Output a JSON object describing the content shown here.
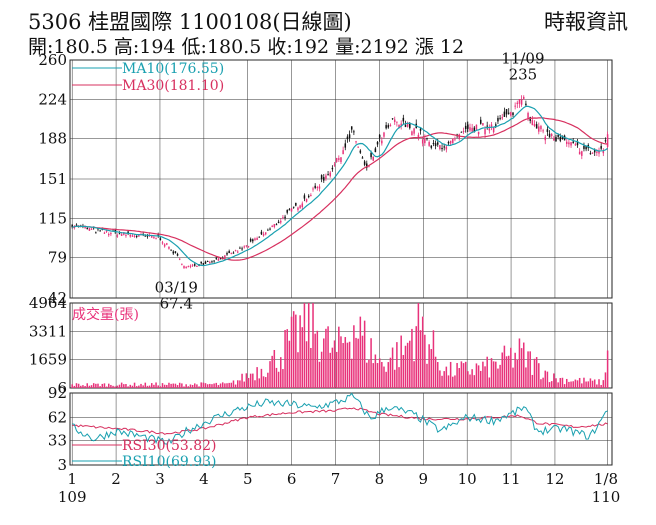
{
  "header": {
    "stock_code": "5306",
    "stock_name": "桂盟國際",
    "date_code": "1100108",
    "chart_kind": "(日線圖)",
    "source": "時報資訊",
    "quote": "開:180.5 高:194 低:180.5 收:192 量:2192 漲 12"
  },
  "colors": {
    "up_candle": "#e8327a",
    "down_candle": "#111111",
    "ma10": "#1aa0b0",
    "ma30": "#d7305f",
    "volume": "#e8327a",
    "rsi10": "#1aa0b0",
    "rsi30": "#d7305f",
    "grid": "#333333"
  },
  "chart_data": [
    {
      "type": "candlestick",
      "title": "",
      "y_ticks": [
        42,
        79,
        115,
        151,
        188,
        224,
        260
      ],
      "ylim": [
        42,
        260
      ],
      "grid": true,
      "legend_position": "top-left",
      "legend": [
        {
          "name": "MA10",
          "value_label": "MA10(176.55)",
          "color": "#1aa0b0"
        },
        {
          "name": "MA30",
          "value_label": "MA30(181.10)",
          "color": "#d7305f"
        }
      ],
      "annotations": [
        {
          "date_label": "03/19",
          "value_label": "67.4",
          "kind": "low",
          "x_month": 3.6,
          "y": 67.4
        },
        {
          "date_label": "11/09",
          "value_label": "235",
          "kind": "high",
          "x_month": 11.27,
          "y": 235
        }
      ],
      "price_keypoints": [
        {
          "x_month": 1.0,
          "y": 109
        },
        {
          "x_month": 1.6,
          "y": 103
        },
        {
          "x_month": 2.3,
          "y": 100
        },
        {
          "x_month": 3.0,
          "y": 97
        },
        {
          "x_month": 3.35,
          "y": 82
        },
        {
          "x_month": 3.6,
          "y": 70
        },
        {
          "x_month": 4.0,
          "y": 74
        },
        {
          "x_month": 4.5,
          "y": 80
        },
        {
          "x_month": 5.0,
          "y": 90
        },
        {
          "x_month": 5.5,
          "y": 105
        },
        {
          "x_month": 6.0,
          "y": 122
        },
        {
          "x_month": 6.5,
          "y": 140
        },
        {
          "x_month": 7.0,
          "y": 165
        },
        {
          "x_month": 7.4,
          "y": 195
        },
        {
          "x_month": 7.7,
          "y": 158
        },
        {
          "x_month": 8.0,
          "y": 185
        },
        {
          "x_month": 8.3,
          "y": 203
        },
        {
          "x_month": 8.8,
          "y": 198
        },
        {
          "x_month": 9.2,
          "y": 180
        },
        {
          "x_month": 9.6,
          "y": 183
        },
        {
          "x_month": 10.0,
          "y": 195
        },
        {
          "x_month": 10.5,
          "y": 200
        },
        {
          "x_month": 11.0,
          "y": 210
        },
        {
          "x_month": 11.27,
          "y": 230
        },
        {
          "x_month": 11.5,
          "y": 200
        },
        {
          "x_month": 12.0,
          "y": 188
        },
        {
          "x_month": 12.5,
          "y": 180
        },
        {
          "x_month": 12.9,
          "y": 175
        },
        {
          "x_month": 13.1,
          "y": 178
        },
        {
          "x_month": 13.2,
          "y": 192
        }
      ]
    },
    {
      "type": "bar",
      "title": "成交量(張)",
      "y_ticks": [
        6,
        1659,
        3311,
        4964
      ],
      "ylim": [
        6,
        4964
      ],
      "grid": true,
      "volume_keypoints": [
        {
          "x_month": 1.0,
          "y": 250
        },
        {
          "x_month": 4.6,
          "y": 280
        },
        {
          "x_month": 5.0,
          "y": 900
        },
        {
          "x_month": 5.6,
          "y": 2000
        },
        {
          "x_month": 6.4,
          "y": 4964
        },
        {
          "x_month": 7.0,
          "y": 2500
        },
        {
          "x_month": 7.4,
          "y": 4700
        },
        {
          "x_month": 8.0,
          "y": 1800
        },
        {
          "x_month": 8.6,
          "y": 2800
        },
        {
          "x_month": 8.85,
          "y": 4964
        },
        {
          "x_month": 9.5,
          "y": 1200
        },
        {
          "x_month": 10.5,
          "y": 1500
        },
        {
          "x_month": 11.2,
          "y": 2500
        },
        {
          "x_month": 12.0,
          "y": 700
        },
        {
          "x_month": 13.1,
          "y": 400
        },
        {
          "x_month": 13.2,
          "y": 2192
        }
      ]
    },
    {
      "type": "line",
      "title": "",
      "y_ticks": [
        3,
        33,
        62,
        92
      ],
      "ylim": [
        3,
        92
      ],
      "grid": true,
      "legend_position": "bottom-left",
      "legend": [
        {
          "name": "RSI30",
          "value_label": "RSI30(53.82)",
          "color": "#d7305f"
        },
        {
          "name": "RSI10",
          "value_label": "RSI10(69.93)",
          "color": "#1aa0b0"
        }
      ],
      "rsi10_keypoints": [
        {
          "x_month": 1.0,
          "y": 50
        },
        {
          "x_month": 1.5,
          "y": 35
        },
        {
          "x_month": 2.0,
          "y": 45
        },
        {
          "x_month": 2.6,
          "y": 38
        },
        {
          "x_month": 3.2,
          "y": 30
        },
        {
          "x_month": 3.6,
          "y": 45
        },
        {
          "x_month": 4.2,
          "y": 60
        },
        {
          "x_month": 4.8,
          "y": 72
        },
        {
          "x_month": 5.4,
          "y": 80
        },
        {
          "x_month": 6.0,
          "y": 78
        },
        {
          "x_month": 6.5,
          "y": 74
        },
        {
          "x_month": 7.0,
          "y": 80
        },
        {
          "x_month": 7.4,
          "y": 88
        },
        {
          "x_month": 7.8,
          "y": 60
        },
        {
          "x_month": 8.2,
          "y": 75
        },
        {
          "x_month": 8.8,
          "y": 65
        },
        {
          "x_month": 9.4,
          "y": 45
        },
        {
          "x_month": 10.0,
          "y": 62
        },
        {
          "x_month": 10.6,
          "y": 58
        },
        {
          "x_month": 11.1,
          "y": 68
        },
        {
          "x_month": 11.3,
          "y": 75
        },
        {
          "x_month": 11.6,
          "y": 45
        },
        {
          "x_month": 12.2,
          "y": 48
        },
        {
          "x_month": 12.8,
          "y": 38
        },
        {
          "x_month": 13.2,
          "y": 69.93
        }
      ],
      "rsi30_keypoints": [
        {
          "x_month": 1.0,
          "y": 52
        },
        {
          "x_month": 2.0,
          "y": 48
        },
        {
          "x_month": 3.2,
          "y": 42
        },
        {
          "x_month": 4.0,
          "y": 48
        },
        {
          "x_month": 5.0,
          "y": 62
        },
        {
          "x_month": 6.0,
          "y": 68
        },
        {
          "x_month": 7.0,
          "y": 70
        },
        {
          "x_month": 7.4,
          "y": 74
        },
        {
          "x_month": 8.0,
          "y": 66
        },
        {
          "x_month": 9.0,
          "y": 60
        },
        {
          "x_month": 10.0,
          "y": 60
        },
        {
          "x_month": 11.2,
          "y": 64
        },
        {
          "x_month": 11.6,
          "y": 55
        },
        {
          "x_month": 12.5,
          "y": 50
        },
        {
          "x_month": 13.2,
          "y": 53.82
        }
      ]
    }
  ],
  "x_axis": {
    "ticks": [
      {
        "label": "1",
        "sub": "109",
        "x_month": 1
      },
      {
        "label": "2",
        "sub": "",
        "x_month": 2
      },
      {
        "label": "3",
        "sub": "",
        "x_month": 3
      },
      {
        "label": "4",
        "sub": "",
        "x_month": 4
      },
      {
        "label": "5",
        "sub": "",
        "x_month": 5
      },
      {
        "label": "6",
        "sub": "",
        "x_month": 6
      },
      {
        "label": "7",
        "sub": "",
        "x_month": 7
      },
      {
        "label": "8",
        "sub": "",
        "x_month": 8
      },
      {
        "label": "9",
        "sub": "",
        "x_month": 9
      },
      {
        "label": "10",
        "sub": "",
        "x_month": 10
      },
      {
        "label": "11",
        "sub": "",
        "x_month": 11
      },
      {
        "label": "12",
        "sub": "",
        "x_month": 12
      },
      {
        "label": "1/8",
        "sub": "110",
        "x_month": 13.2
      }
    ]
  }
}
